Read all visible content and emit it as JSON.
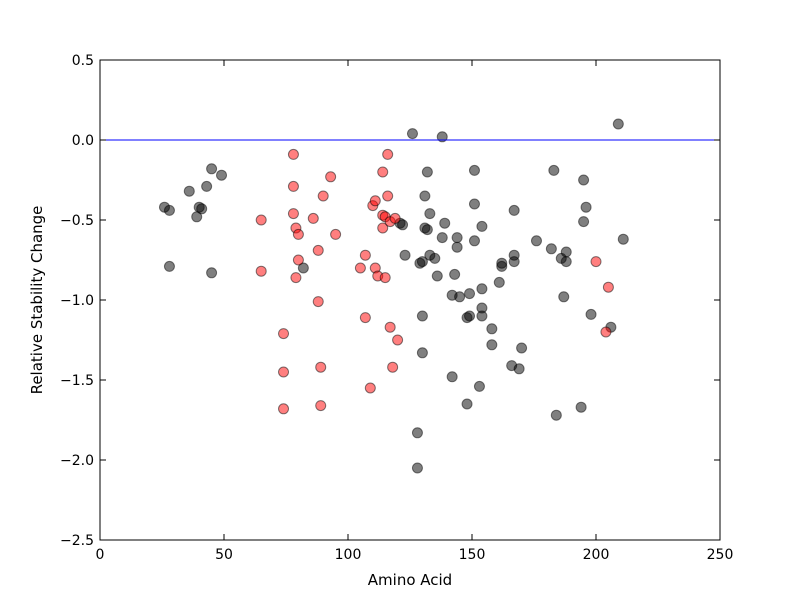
{
  "chart_data": {
    "type": "scatter",
    "title": "",
    "xlabel": "Amino Acid",
    "ylabel": "Relative Stability Change",
    "xlim": [
      0,
      250
    ],
    "ylim": [
      -2.5,
      0.5
    ],
    "x_ticks": [
      0,
      50,
      100,
      150,
      200,
      250
    ],
    "x_tick_labels": [
      "0",
      "50",
      "100",
      "150",
      "200",
      "250"
    ],
    "y_ticks": [
      -2.5,
      -2.0,
      -1.5,
      -1.0,
      -0.5,
      0.0,
      0.5
    ],
    "y_tick_labels": [
      "−2.5",
      "−2.0",
      "−1.5",
      "−1.0",
      "−0.5",
      "0.0",
      "0.5"
    ],
    "grid": false,
    "reference_line": {
      "y": 0.0,
      "color": "#0000ff"
    },
    "series": [
      {
        "color": "#000000",
        "alpha": 0.5,
        "points": [
          [
            26,
            -0.42
          ],
          [
            28,
            -0.44
          ],
          [
            28,
            -0.79
          ],
          [
            36,
            -0.32
          ],
          [
            39,
            -0.48
          ],
          [
            40,
            -0.42
          ],
          [
            41,
            -0.43
          ],
          [
            43,
            -0.29
          ],
          [
            45,
            -0.18
          ],
          [
            45,
            -0.83
          ],
          [
            49,
            -0.22
          ],
          [
            82,
            -0.8
          ],
          [
            121,
            -0.52
          ],
          [
            122,
            -0.53
          ],
          [
            123,
            -0.72
          ],
          [
            126,
            0.04
          ],
          [
            128,
            -1.83
          ],
          [
            128,
            -2.05
          ],
          [
            129,
            -0.77
          ],
          [
            130,
            -0.76
          ],
          [
            130,
            -1.1
          ],
          [
            130,
            -1.33
          ],
          [
            131,
            -0.35
          ],
          [
            131,
            -0.55
          ],
          [
            132,
            -0.56
          ],
          [
            132,
            -0.2
          ],
          [
            133,
            -0.46
          ],
          [
            133,
            -0.72
          ],
          [
            135,
            -0.74
          ],
          [
            136,
            -0.85
          ],
          [
            138,
            0.02
          ],
          [
            138,
            -0.61
          ],
          [
            139,
            -0.52
          ],
          [
            142,
            -0.97
          ],
          [
            142,
            -1.48
          ],
          [
            143,
            -0.84
          ],
          [
            144,
            -0.61
          ],
          [
            144,
            -0.67
          ],
          [
            145,
            -0.98
          ],
          [
            148,
            -1.65
          ],
          [
            148,
            -1.11
          ],
          [
            149,
            -1.1
          ],
          [
            149,
            -0.96
          ],
          [
            151,
            -0.19
          ],
          [
            151,
            -0.4
          ],
          [
            151,
            -0.63
          ],
          [
            153,
            -1.54
          ],
          [
            154,
            -0.54
          ],
          [
            154,
            -0.93
          ],
          [
            154,
            -1.05
          ],
          [
            154,
            -1.1
          ],
          [
            158,
            -1.18
          ],
          [
            158,
            -1.28
          ],
          [
            161,
            -0.89
          ],
          [
            162,
            -0.77
          ],
          [
            162,
            -0.79
          ],
          [
            166,
            -1.41
          ],
          [
            167,
            -0.44
          ],
          [
            167,
            -0.72
          ],
          [
            167,
            -0.76
          ],
          [
            169,
            -1.43
          ],
          [
            170,
            -1.3
          ],
          [
            176,
            -0.63
          ],
          [
            182,
            -0.68
          ],
          [
            183,
            -0.19
          ],
          [
            184,
            -1.72
          ],
          [
            186,
            -0.74
          ],
          [
            187,
            -0.98
          ],
          [
            188,
            -0.7
          ],
          [
            188,
            -0.76
          ],
          [
            194,
            -1.67
          ],
          [
            195,
            -0.25
          ],
          [
            195,
            -0.51
          ],
          [
            196,
            -0.42
          ],
          [
            198,
            -1.09
          ],
          [
            206,
            -1.17
          ],
          [
            209,
            0.1
          ],
          [
            211,
            -0.62
          ]
        ]
      },
      {
        "color": "#ff0000",
        "alpha": 0.5,
        "points": [
          [
            65,
            -0.5
          ],
          [
            65,
            -0.82
          ],
          [
            74,
            -1.21
          ],
          [
            74,
            -1.45
          ],
          [
            74,
            -1.68
          ],
          [
            78,
            -0.09
          ],
          [
            78,
            -0.29
          ],
          [
            78,
            -0.46
          ],
          [
            79,
            -0.55
          ],
          [
            79,
            -0.86
          ],
          [
            80,
            -0.59
          ],
          [
            80,
            -0.75
          ],
          [
            86,
            -0.49
          ],
          [
            88,
            -0.69
          ],
          [
            88,
            -1.01
          ],
          [
            89,
            -1.42
          ],
          [
            89,
            -1.66
          ],
          [
            90,
            -0.35
          ],
          [
            93,
            -0.23
          ],
          [
            95,
            -0.59
          ],
          [
            105,
            -0.8
          ],
          [
            107,
            -0.72
          ],
          [
            107,
            -1.11
          ],
          [
            109,
            -1.55
          ],
          [
            110,
            -0.41
          ],
          [
            111,
            -0.38
          ],
          [
            111,
            -0.8
          ],
          [
            112,
            -0.85
          ],
          [
            114,
            -0.2
          ],
          [
            114,
            -0.47
          ],
          [
            114,
            -0.55
          ],
          [
            115,
            -0.48
          ],
          [
            115,
            -0.86
          ],
          [
            116,
            -0.09
          ],
          [
            116,
            -0.35
          ],
          [
            117,
            -0.51
          ],
          [
            117,
            -1.17
          ],
          [
            118,
            -1.42
          ],
          [
            119,
            -0.49
          ],
          [
            120,
            -1.25
          ],
          [
            200,
            -0.76
          ],
          [
            204,
            -1.2
          ],
          [
            205,
            -0.92
          ]
        ]
      }
    ]
  }
}
